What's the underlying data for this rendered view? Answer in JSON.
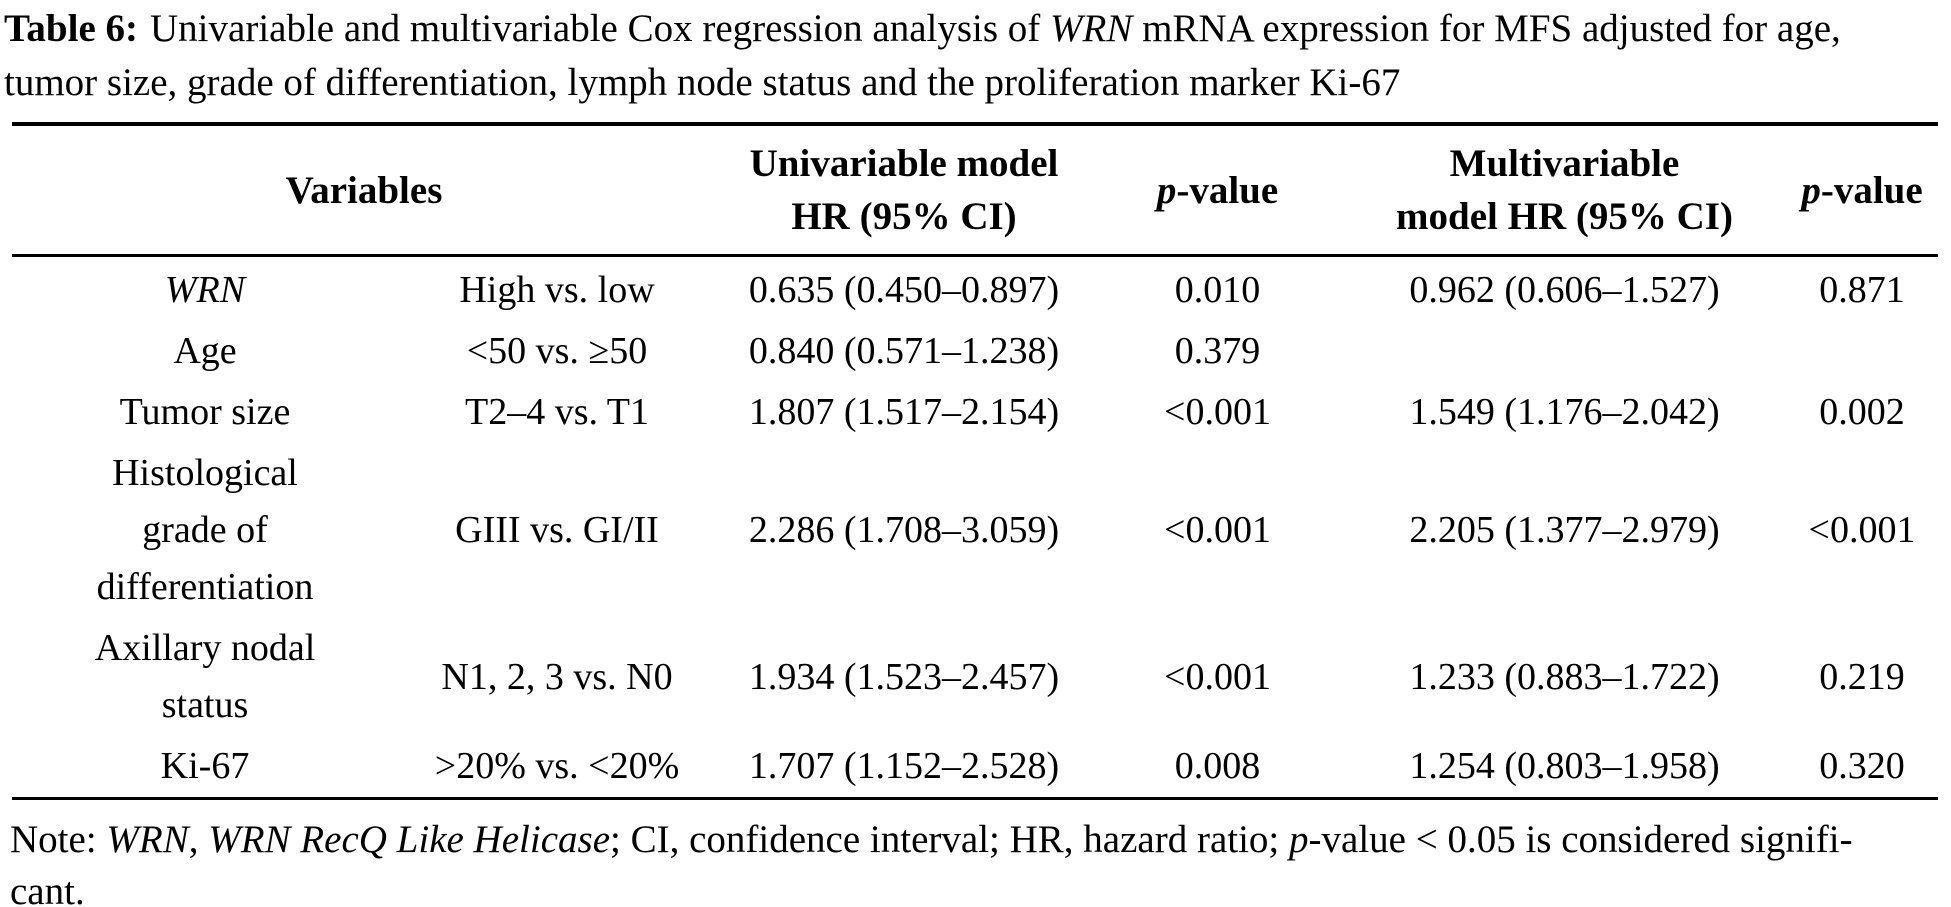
{
  "title": {
    "label": "Table 6:",
    "text_before_gene": "Univariable and multivariable Cox regression analysis of ",
    "gene": "WRN",
    "text_after_gene": " mRNA expression for MFS adjusted for age,\ntumor size, grade of differentiation, lymph node status and the proliferation marker Ki-67"
  },
  "table": {
    "headers": {
      "variables": "Variables",
      "univariable_model": "Univariable model\nHR (95% CI)",
      "multivariable_model": "Multivariable\nmodel HR (95% CI)",
      "p_value_italic_part": "p",
      "p_value_rest_part": "-value"
    },
    "rows": [
      {
        "variable": "WRN",
        "comparison": "High vs. low",
        "uni_hr": "0.635 (0.450–0.897)",
        "uni_p": "0.010",
        "multi_hr": "0.962 (0.606–1.527)",
        "multi_p": "0.871"
      },
      {
        "variable": "Age",
        "comparison": "<50 vs. ≥50",
        "uni_hr": "0.840 (0.571–1.238)",
        "uni_p": "0.379",
        "multi_hr": "",
        "multi_p": ""
      },
      {
        "variable": "Tumor size",
        "comparison": "T2–4 vs. T1",
        "uni_hr": "1.807 (1.517–2.154)",
        "uni_p": "<0.001",
        "multi_hr": "1.549 (1.176–2.042)",
        "multi_p": "0.002"
      },
      {
        "variable": "Histological\ngrade of\ndifferentiation",
        "comparison": "GIII vs. GI/II",
        "uni_hr": "2.286 (1.708–3.059)",
        "uni_p": "<0.001",
        "multi_hr": "2.205 (1.377–2.979)",
        "multi_p": "<0.001"
      },
      {
        "variable": "Axillary nodal\nstatus",
        "comparison": "N1, 2, 3 vs. N0",
        "uni_hr": "1.934 (1.523–2.457)",
        "uni_p": "<0.001",
        "multi_hr": "1.233 (0.883–1.722)",
        "multi_p": "0.219"
      },
      {
        "variable": "Ki-67",
        "comparison": ">20% vs. <20%",
        "uni_hr": "1.707 (1.152–2.528)",
        "uni_p": "0.008",
        "multi_hr": "1.254 (0.803–1.958)",
        "multi_p": "0.320"
      }
    ]
  },
  "note": {
    "prefix": "Note: ",
    "gene": "WRN",
    "separator": ", ",
    "gene_full_name": "WRN RecQ Like Helicase",
    "mid": "; CI, confidence interval; HR, hazard ratio; ",
    "p_italic_part": "p",
    "suffix": "-value < 0.05 is considered signifi-\ncant."
  },
  "colors": {
    "text": "#000000",
    "background": "#ffffff",
    "rule": "#000000"
  }
}
